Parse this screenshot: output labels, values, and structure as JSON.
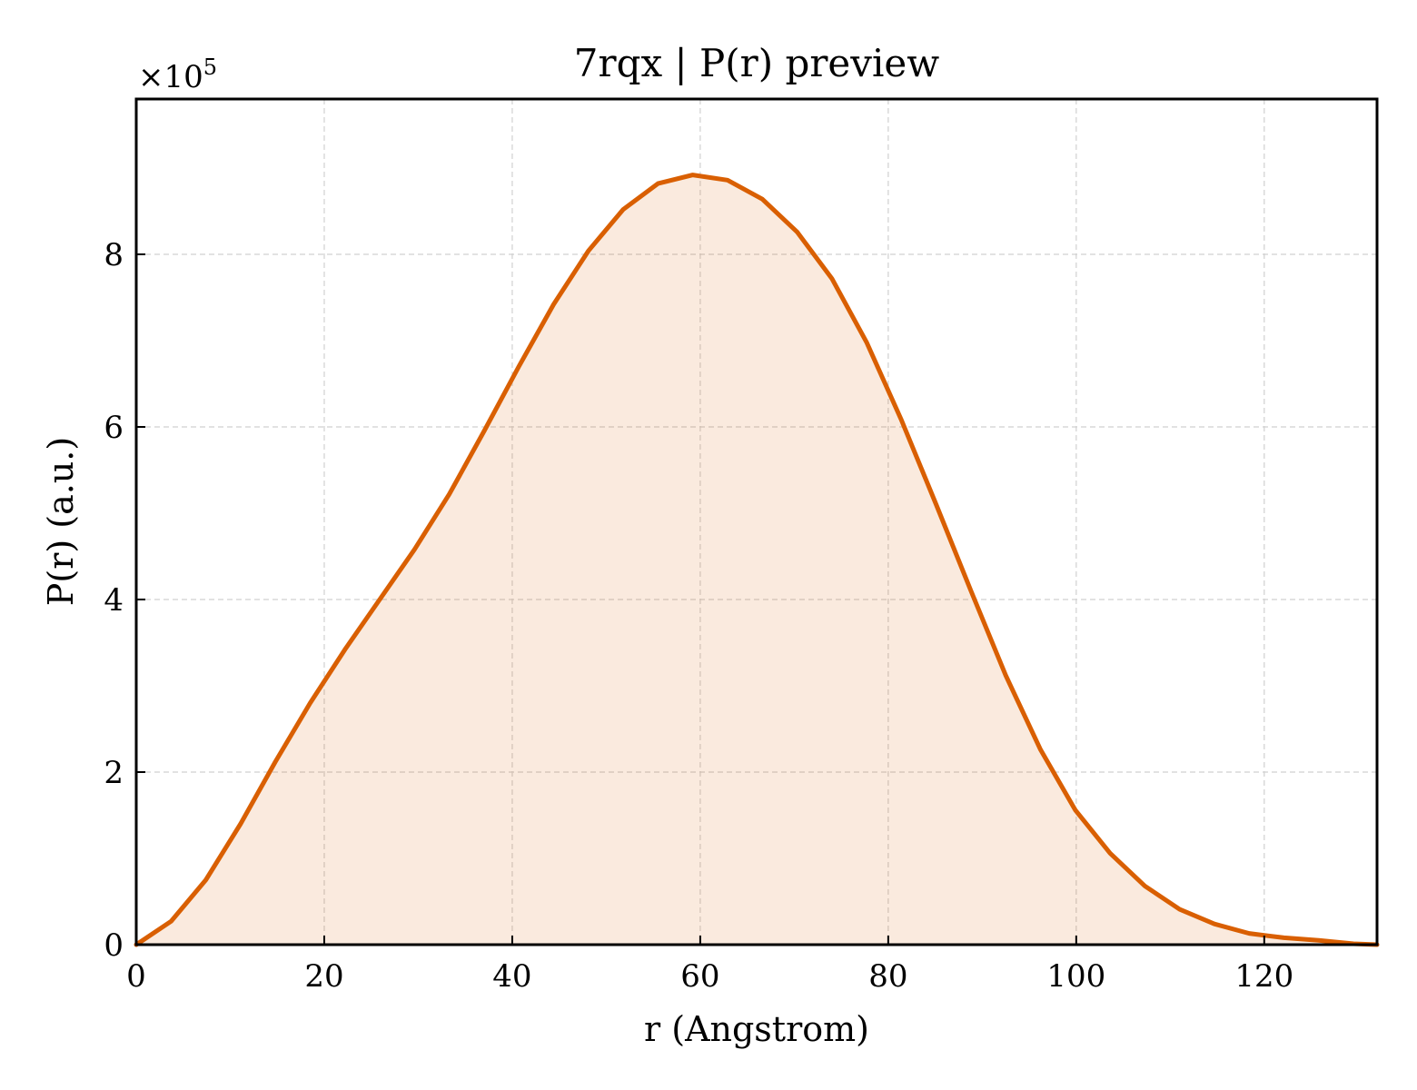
{
  "chart_data": {
    "type": "area",
    "title": "7rqx | P(r) preview",
    "xlabel": "r (Angstrom)",
    "ylabel": "P(r) (a.u.)",
    "y_multiplier_label": "×10",
    "y_multiplier_exponent": "5",
    "xlim": [
      0,
      132
    ],
    "ylim": [
      0,
      9.8
    ],
    "x_ticks": [
      0,
      20,
      40,
      60,
      80,
      100,
      120
    ],
    "y_ticks": [
      0,
      2,
      4,
      6,
      8
    ],
    "grid": true,
    "line_color": "#d95f02",
    "fill_color": "#d95f02",
    "fill_opacity": 0.13,
    "series": [
      {
        "x": [
          0,
          3.7,
          7.4,
          11.1,
          14.8,
          18.5,
          22.2,
          25.9,
          29.6,
          33.3,
          37.0,
          40.7,
          44.4,
          48.1,
          51.8,
          55.5,
          59.2,
          62.9,
          66.6,
          70.3,
          74.0,
          77.7,
          81.4,
          85.1,
          88.8,
          92.5,
          96.2,
          99.9,
          103.6,
          107.3,
          111.0,
          114.7,
          118.4,
          122.1,
          125.8,
          129.5,
          132.0
        ],
        "values": [
          0,
          0.27,
          0.75,
          1.4,
          2.12,
          2.8,
          3.42,
          4.0,
          4.58,
          5.22,
          5.95,
          6.7,
          7.42,
          8.04,
          8.52,
          8.82,
          8.92,
          8.86,
          8.64,
          8.26,
          7.72,
          6.98,
          6.08,
          5.1,
          4.1,
          3.12,
          2.26,
          1.56,
          1.06,
          0.68,
          0.41,
          0.24,
          0.13,
          0.08,
          0.05,
          0.01,
          0
        ]
      }
    ]
  }
}
